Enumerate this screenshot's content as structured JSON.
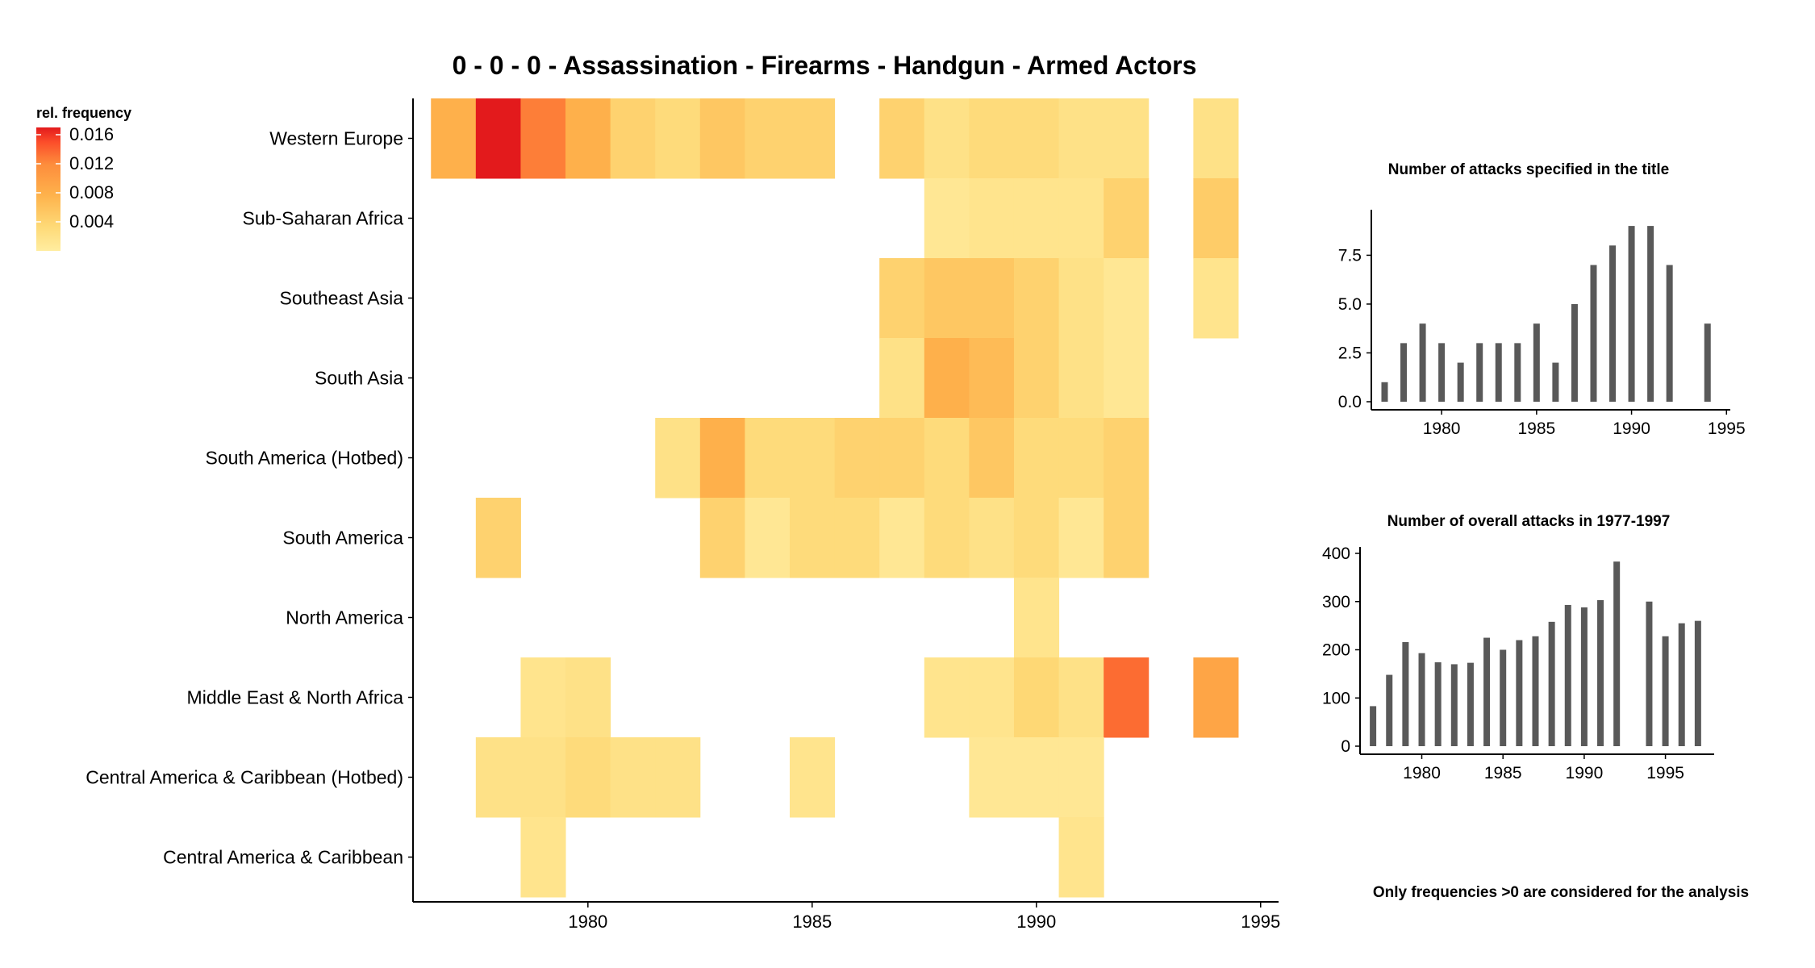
{
  "title": "0 - 0 - 0 - Assassination - Firearms - Handgun - Armed Actors",
  "legend": {
    "title": "rel. frequency",
    "ticks": [
      "0.016",
      "0.012",
      "0.008",
      "0.004"
    ],
    "colors": [
      "#FFEDA0",
      "#FED976",
      "#FEB24C",
      "#FD8D3C",
      "#FC4E2A",
      "#E31A1C"
    ],
    "placement": "top-left"
  },
  "footnote": "Only frequencies >0 are considered for the analysis",
  "chart_data": [
    {
      "type": "heatmap",
      "title": "0 - 0 - 0 - Assassination - Firearms - Handgun - Armed Actors",
      "xlabel": "",
      "ylabel": "",
      "x_ticks": [
        "1980",
        "1985",
        "1990",
        "1995"
      ],
      "x_tick_values": [
        1980,
        1985,
        1990,
        1995
      ],
      "xlim": [
        1976.1,
        1995.4
      ],
      "years": [
        1977,
        1978,
        1979,
        1980,
        1981,
        1982,
        1983,
        1984,
        1985,
        1986,
        1987,
        1988,
        1989,
        1990,
        1991,
        1992,
        1993,
        1994
      ],
      "rows": [
        "Western Europe",
        "Sub-Saharan Africa",
        "Southeast Asia",
        "South Asia",
        "South America (Hotbed)",
        "South America",
        "North America",
        "Middle East & North Africa",
        "Central America & Caribbean (Hotbed)",
        "Central America & Caribbean"
      ],
      "cells": [
        [
          0.007,
          0.017,
          0.011,
          0.007,
          0.004,
          0.003,
          0.005,
          0.004,
          0.004,
          null,
          0.004,
          0.002,
          0.003,
          0.003,
          0.002,
          0.002,
          null,
          0.002
        ],
        [
          null,
          null,
          null,
          null,
          null,
          null,
          null,
          null,
          null,
          null,
          null,
          0.001,
          0.0015,
          0.0015,
          0.0015,
          0.004,
          null,
          0.0045
        ],
        [
          null,
          null,
          null,
          null,
          null,
          null,
          null,
          null,
          null,
          null,
          0.004,
          0.005,
          0.005,
          0.004,
          0.002,
          0.001,
          null,
          0.0015
        ],
        [
          null,
          null,
          null,
          null,
          null,
          null,
          null,
          null,
          null,
          null,
          0.002,
          0.007,
          0.006,
          0.004,
          0.002,
          0.001,
          null,
          null
        ],
        [
          null,
          null,
          null,
          null,
          null,
          0.002,
          0.007,
          0.003,
          0.003,
          0.004,
          0.004,
          0.003,
          0.005,
          0.003,
          0.003,
          0.004,
          null,
          null
        ],
        [
          null,
          0.004,
          null,
          null,
          null,
          null,
          0.004,
          0.001,
          0.003,
          0.003,
          0.001,
          0.003,
          0.002,
          0.003,
          0.001,
          0.004,
          null,
          null
        ],
        [
          null,
          null,
          null,
          null,
          null,
          null,
          null,
          null,
          null,
          null,
          null,
          null,
          null,
          0.0015,
          null,
          null,
          null,
          null
        ],
        [
          null,
          null,
          0.0015,
          0.002,
          null,
          null,
          null,
          null,
          null,
          null,
          null,
          0.0015,
          0.0015,
          0.0035,
          0.002,
          0.012,
          null,
          0.008
        ],
        [
          null,
          0.002,
          0.002,
          0.003,
          0.002,
          0.002,
          null,
          null,
          0.0015,
          null,
          null,
          null,
          0.001,
          0.001,
          0.001,
          null,
          null,
          null
        ],
        [
          null,
          null,
          0.0015,
          null,
          null,
          null,
          null,
          null,
          null,
          null,
          null,
          null,
          null,
          null,
          0.0015,
          null,
          null,
          null
        ]
      ],
      "color_scale_max": 0.017,
      "grid": false
    },
    {
      "type": "bar",
      "title": "Number of attacks specified in the title",
      "xlabel": "",
      "ylabel": "",
      "x": [
        1977,
        1978,
        1979,
        1980,
        1981,
        1982,
        1983,
        1984,
        1985,
        1986,
        1987,
        1988,
        1989,
        1990,
        1991,
        1992,
        1994
      ],
      "values": [
        1,
        3,
        4,
        3,
        2,
        3,
        3,
        3,
        4,
        2,
        5,
        7,
        8,
        9,
        9,
        7,
        4
      ],
      "x_ticks": [
        "1980",
        "1985",
        "1990",
        "1995"
      ],
      "x_tick_values": [
        1980,
        1985,
        1990,
        1995
      ],
      "y_ticks": [
        "0.0",
        "2.5",
        "5.0",
        "7.5"
      ],
      "y_tick_values": [
        0,
        2.5,
        5,
        7.5
      ],
      "xlim": [
        1976.3,
        1995.2
      ],
      "ylim": [
        0,
        9.5
      ],
      "bar_color": "#595959",
      "grid": false
    },
    {
      "type": "bar",
      "title": "Number of overall attacks in 1977-1997",
      "xlabel": "",
      "ylabel": "",
      "x": [
        1977,
        1978,
        1979,
        1980,
        1981,
        1982,
        1983,
        1984,
        1985,
        1986,
        1987,
        1988,
        1989,
        1990,
        1991,
        1992,
        1994,
        1995,
        1996,
        1997
      ],
      "values": [
        83,
        148,
        216,
        193,
        174,
        170,
        173,
        225,
        200,
        220,
        228,
        258,
        293,
        288,
        303,
        383,
        300,
        228,
        255,
        260
      ],
      "x_ticks": [
        "1980",
        "1985",
        "1990",
        "1995"
      ],
      "x_tick_values": [
        1980,
        1985,
        1990,
        1995
      ],
      "y_ticks": [
        "0",
        "100",
        "200",
        "300",
        "400"
      ],
      "y_tick_values": [
        0,
        100,
        200,
        300,
        400
      ],
      "xlim": [
        1976.2,
        1998.0
      ],
      "ylim": [
        0,
        400
      ],
      "bar_color": "#595959",
      "grid": false
    }
  ]
}
